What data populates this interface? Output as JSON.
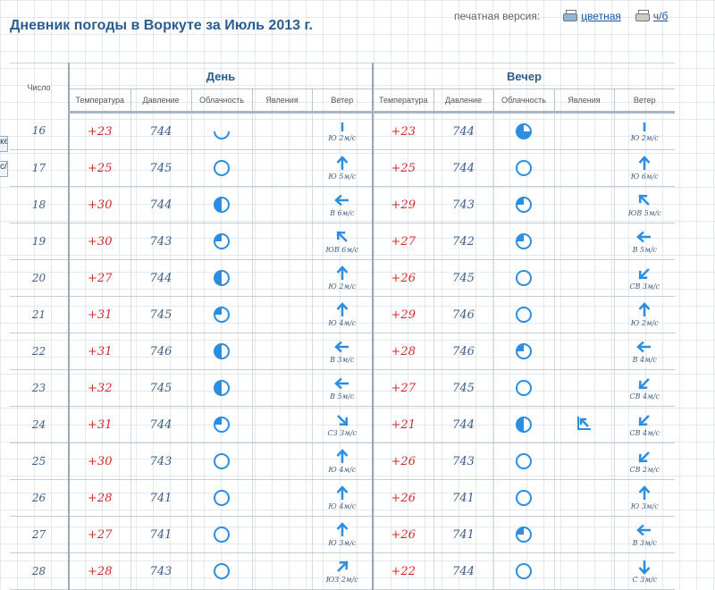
{
  "page": {
    "title": "Дневник погоды в Воркуте за Июль 2013 г.",
    "print_label": "печатная версия:",
    "print_color": "цветная",
    "print_bw": "ч/б"
  },
  "sidebar_stub": {
    "a": "ке",
    "b": "с/"
  },
  "table": {
    "day_col": "Число",
    "group_day": "День",
    "group_evening": "Вечер",
    "sub_headers": [
      "Температура",
      "Давление",
      "Облачность",
      "Явления",
      "Ветер"
    ]
  },
  "rows": [
    {
      "date": "16",
      "day": {
        "temp": "+23",
        "press": "744",
        "cloud": "partly-cloudy-icon",
        "phen": "",
        "wind_dir": "calm",
        "wind": "Ю 2м/с"
      },
      "evening": {
        "temp": "+23",
        "press": "744",
        "cloud": "cloudy-icon",
        "phen": "",
        "wind_dir": "calm",
        "wind": "Ю 2м/с"
      }
    },
    {
      "date": "17",
      "day": {
        "temp": "+25",
        "press": "745",
        "cloud": "clear-icon",
        "phen": "",
        "wind_dir": "N",
        "wind": "Ю 5м/с"
      },
      "evening": {
        "temp": "+25",
        "press": "744",
        "cloud": "clear-icon",
        "phen": "",
        "wind_dir": "N",
        "wind": "Ю 6м/с"
      }
    },
    {
      "date": "18",
      "day": {
        "temp": "+30",
        "press": "744",
        "cloud": "half-cloudy-icon",
        "phen": "",
        "wind_dir": "W",
        "wind": "В 6м/с"
      },
      "evening": {
        "temp": "+29",
        "press": "743",
        "cloud": "mostly-clear-icon",
        "phen": "",
        "wind_dir": "NW",
        "wind": "ЮВ 5м/с"
      }
    },
    {
      "date": "19",
      "day": {
        "temp": "+30",
        "press": "743",
        "cloud": "mostly-clear-icon",
        "phen": "",
        "wind_dir": "NW",
        "wind": "ЮВ 6м/с"
      },
      "evening": {
        "temp": "+27",
        "press": "742",
        "cloud": "mostly-clear-icon",
        "phen": "",
        "wind_dir": "W",
        "wind": "В 5м/с"
      }
    },
    {
      "date": "20",
      "day": {
        "temp": "+27",
        "press": "744",
        "cloud": "half-cloudy-icon",
        "phen": "",
        "wind_dir": "N",
        "wind": "Ю 2м/с"
      },
      "evening": {
        "temp": "+26",
        "press": "745",
        "cloud": "clear-icon",
        "phen": "",
        "wind_dir": "SW",
        "wind": "СВ 3м/с"
      }
    },
    {
      "date": "21",
      "day": {
        "temp": "+31",
        "press": "745",
        "cloud": "mostly-clear-icon",
        "phen": "",
        "wind_dir": "N",
        "wind": "Ю 4м/с"
      },
      "evening": {
        "temp": "+29",
        "press": "746",
        "cloud": "clear-icon",
        "phen": "",
        "wind_dir": "N",
        "wind": "Ю 2м/с"
      }
    },
    {
      "date": "22",
      "day": {
        "temp": "+31",
        "press": "746",
        "cloud": "half-cloudy-icon",
        "phen": "",
        "wind_dir": "W",
        "wind": "В 3м/с"
      },
      "evening": {
        "temp": "+28",
        "press": "746",
        "cloud": "mostly-clear-icon",
        "phen": "",
        "wind_dir": "W",
        "wind": "В 4м/с"
      }
    },
    {
      "date": "23",
      "day": {
        "temp": "+32",
        "press": "745",
        "cloud": "half-cloudy-icon",
        "phen": "",
        "wind_dir": "W",
        "wind": "В 5м/с"
      },
      "evening": {
        "temp": "+27",
        "press": "745",
        "cloud": "clear-icon",
        "phen": "",
        "wind_dir": "SW",
        "wind": "СВ 4м/с"
      }
    },
    {
      "date": "24",
      "day": {
        "temp": "+31",
        "press": "744",
        "cloud": "mostly-clear-icon",
        "phen": "",
        "wind_dir": "SE",
        "wind": "СЗ 3м/с"
      },
      "evening": {
        "temp": "+21",
        "press": "744",
        "cloud": "half-cloudy-icon",
        "phen": "wind-squall-icon",
        "wind_dir": "SW",
        "wind": "СВ 4м/с"
      }
    },
    {
      "date": "25",
      "day": {
        "temp": "+30",
        "press": "743",
        "cloud": "clear-icon",
        "phen": "",
        "wind_dir": "N",
        "wind": "Ю 4м/с"
      },
      "evening": {
        "temp": "+26",
        "press": "743",
        "cloud": "clear-icon",
        "phen": "",
        "wind_dir": "SW",
        "wind": "СВ 2м/с"
      }
    },
    {
      "date": "26",
      "day": {
        "temp": "+28",
        "press": "741",
        "cloud": "clear-icon",
        "phen": "",
        "wind_dir": "N",
        "wind": "Ю 4м/с"
      },
      "evening": {
        "temp": "+26",
        "press": "741",
        "cloud": "clear-icon",
        "phen": "",
        "wind_dir": "N",
        "wind": "Ю 3м/с"
      }
    },
    {
      "date": "27",
      "day": {
        "temp": "+27",
        "press": "741",
        "cloud": "clear-icon",
        "phen": "",
        "wind_dir": "N",
        "wind": "Ю 3м/с"
      },
      "evening": {
        "temp": "+26",
        "press": "741",
        "cloud": "mostly-clear-icon",
        "phen": "",
        "wind_dir": "W",
        "wind": "В 3м/с"
      }
    },
    {
      "date": "28",
      "day": {
        "temp": "+28",
        "press": "743",
        "cloud": "clear-icon",
        "phen": "",
        "wind_dir": "NE",
        "wind": "ЮЗ 2м/с"
      },
      "evening": {
        "temp": "+22",
        "press": "744",
        "cloud": "clear-icon",
        "phen": "",
        "wind_dir": "S",
        "wind": "С 3м/с"
      }
    }
  ],
  "colors": {
    "title": "#2a5d8f",
    "temp": "#d02a2a",
    "value": "#3c5d8a",
    "icon": "#2d8de0"
  }
}
